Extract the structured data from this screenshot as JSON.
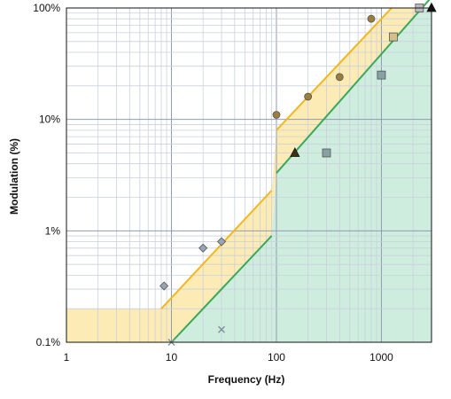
{
  "chart_data": {
    "type": "scatter",
    "title": "",
    "xlabel": "Frequency (Hz)",
    "ylabel": "Modulation (%)",
    "x_scale": "log",
    "y_scale": "log",
    "xlim": [
      1,
      3000
    ],
    "ylim": [
      0.1,
      100
    ],
    "x_ticks": [
      {
        "value": 1,
        "label": "1"
      },
      {
        "value": 10,
        "label": "10"
      },
      {
        "value": 100,
        "label": "100"
      },
      {
        "value": 1000,
        "label": "1000"
      }
    ],
    "y_ticks": [
      {
        "value": 0.1,
        "label": "0.1%"
      },
      {
        "value": 1,
        "label": "1%"
      },
      {
        "value": 10,
        "label": "10%"
      },
      {
        "value": 100,
        "label": "100%"
      }
    ],
    "grid": true,
    "legend": "none",
    "regions": [
      {
        "name": "low-risk",
        "fill": "#c6ead8",
        "polygon": [
          [
            10,
            0.1
          ],
          [
            90,
            0.9
          ],
          [
            100,
            3.3
          ],
          [
            2500,
            100
          ],
          [
            3000,
            100
          ],
          [
            3000,
            0.1
          ]
        ]
      },
      {
        "name": "transition",
        "fill": "#fde7a8",
        "polygon": [
          [
            1,
            0.1
          ],
          [
            1,
            0.2
          ],
          [
            8,
            0.2
          ],
          [
            90,
            2.3
          ],
          [
            100,
            8
          ],
          [
            1250,
            100
          ],
          [
            2500,
            100
          ],
          [
            100,
            3.3
          ],
          [
            90,
            0.9
          ],
          [
            10,
            0.1
          ]
        ]
      }
    ],
    "boundary_lines": [
      {
        "name": "low-risk-boundary",
        "color": "#3aa85a",
        "points": [
          [
            [
              10,
              0.1
            ],
            [
              90,
              0.9
            ]
          ],
          [
            [
              100,
              3.3
            ],
            [
              3000,
              125
            ]
          ]
        ]
      },
      {
        "name": "upper-boundary",
        "color": "#f2b620",
        "points": [
          [
            [
              8,
              0.2
            ],
            [
              90,
              2.3
            ]
          ],
          [
            [
              100,
              8
            ],
            [
              1250,
              100
            ]
          ]
        ]
      }
    ],
    "series": [
      {
        "marker": "diamond",
        "color": "#9aa4b4",
        "values": [
          [
            8.5,
            0.32
          ],
          [
            20,
            0.7
          ],
          [
            30,
            0.8
          ]
        ]
      },
      {
        "marker": "circle",
        "color": "#9c7e3c",
        "values": [
          [
            100,
            11
          ],
          [
            200,
            16
          ],
          [
            400,
            24
          ],
          [
            800,
            80
          ]
        ]
      },
      {
        "marker": "triangle",
        "color": "#3d3211",
        "values": [
          [
            150,
            5
          ]
        ]
      },
      {
        "marker": "triangle",
        "color": "#111111",
        "values": [
          [
            3000,
            100
          ]
        ]
      },
      {
        "marker": "square",
        "color": "#86a2a2",
        "values": [
          [
            300,
            5
          ],
          [
            1000,
            25
          ]
        ]
      },
      {
        "marker": "square",
        "color": "#d3c088",
        "values": [
          [
            1300,
            55
          ]
        ]
      },
      {
        "marker": "square",
        "color": "#bcbcbc",
        "values": [
          [
            2300,
            100
          ]
        ]
      },
      {
        "marker": "x",
        "color": "#7a9196",
        "values": [
          [
            10,
            0.1
          ],
          [
            30,
            0.13
          ]
        ]
      }
    ]
  }
}
